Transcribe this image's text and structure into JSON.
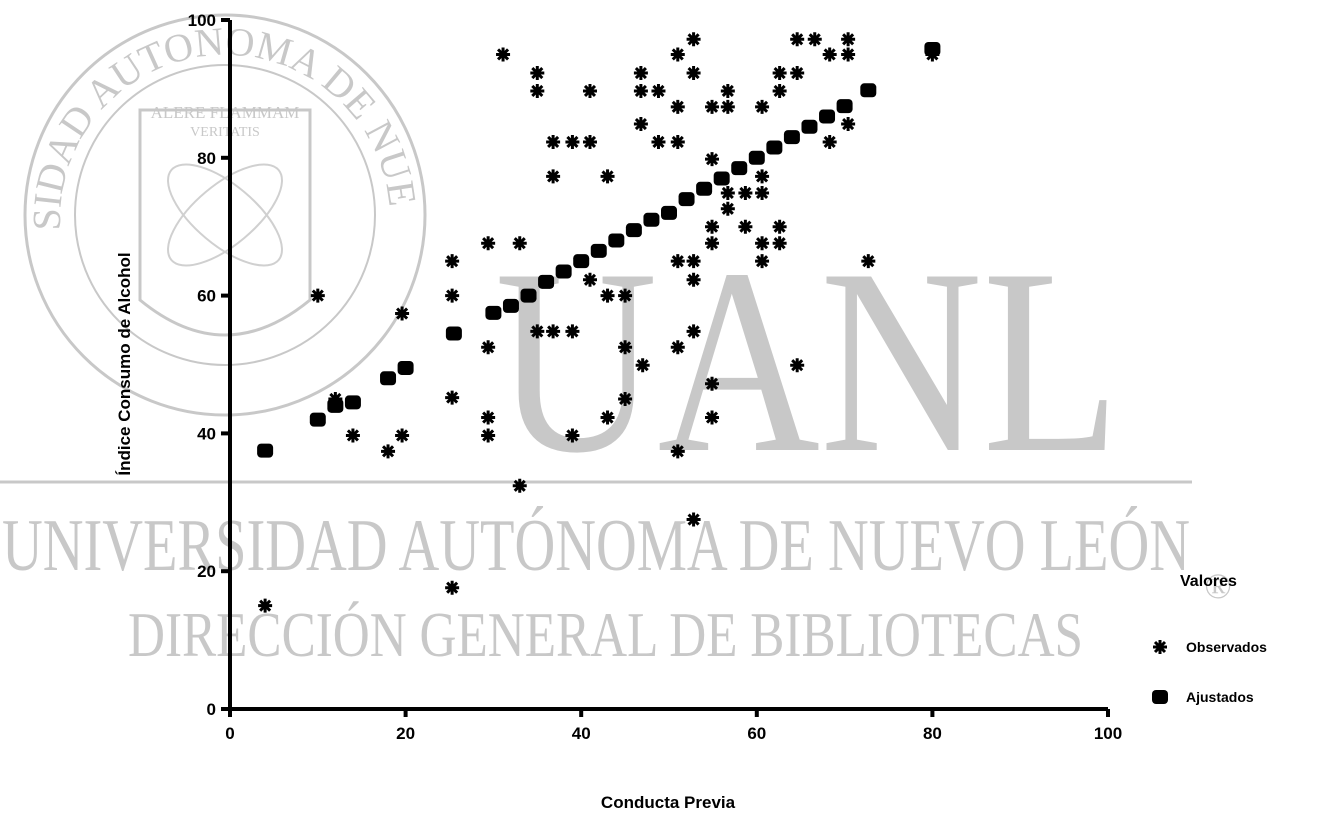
{
  "watermark": {
    "seal_text": "UNIVERSIDAD AUTONOMA DE NUEVO LEON",
    "motto_1": "ALERE FLAMMAM",
    "motto_2": "VERITATIS",
    "acronym": "UANL",
    "line_1": "UNIVERSIDAD AUTÓNOMA DE NUEVO LEÓN",
    "line_2": "DIRECCIÓN GENERAL DE BIBLIOTECAS",
    "mark": "®"
  },
  "chart_data": {
    "type": "scatter",
    "x_label": "Conducta Previa",
    "y_label": "Índice Consumo de Alcohol",
    "xlim": [
      0,
      100
    ],
    "ylim": [
      0,
      100
    ],
    "xticks": [
      0,
      20,
      40,
      60,
      80,
      100
    ],
    "yticks": [
      0,
      20,
      40,
      60,
      80,
      100
    ],
    "legend_title": "Valores",
    "legend": "right",
    "series": [
      {
        "name": "Observados",
        "color": "#000000",
        "marker": "asterisk",
        "x": [
          4,
          10,
          12,
          14,
          18,
          19.6,
          19.6,
          25.3,
          25.3,
          25.3,
          25.3,
          29.4,
          29.4,
          29.4,
          29.4,
          31.1,
          33,
          33,
          35,
          35,
          35,
          36.8,
          36.8,
          36.8,
          39,
          39,
          39,
          41,
          41,
          41,
          43,
          43,
          43,
          45,
          45,
          45,
          46.8,
          46.8,
          46.8,
          47,
          48.8,
          48.8,
          51,
          51,
          51,
          51,
          51,
          51,
          52.8,
          52.8,
          52.8,
          52.8,
          52.8,
          52.8,
          54.9,
          54.9,
          54.9,
          54.9,
          54.9,
          54.9,
          56.7,
          56.7,
          56.7,
          56.7,
          58.7,
          58.7,
          60.6,
          60.6,
          60.6,
          60.6,
          60.6,
          62.6,
          62.6,
          62.6,
          62.6,
          64.6,
          64.6,
          64.6,
          66.6,
          68.3,
          68.3,
          70.4,
          70.4,
          70.4,
          72.7,
          80
        ],
        "y": [
          15,
          60,
          45,
          39.7,
          37.4,
          39.7,
          57.4,
          65,
          60,
          45.2,
          17.6,
          67.6,
          52.5,
          42.3,
          39.7,
          95,
          67.6,
          32.4,
          92.3,
          89.7,
          54.8,
          54.8,
          82.3,
          77.3,
          82.3,
          54.8,
          39.7,
          89.7,
          82.3,
          62.3,
          77.3,
          60,
          42.3,
          60,
          52.5,
          45,
          92.3,
          89.7,
          84.9,
          49.9,
          89.7,
          82.3,
          95,
          87.4,
          82.3,
          65,
          52.5,
          37.4,
          97.2,
          92.3,
          65,
          62.3,
          54.8,
          27.5,
          87.4,
          79.8,
          70,
          67.6,
          47.2,
          42.3,
          89.7,
          87.4,
          74.9,
          72.6,
          70,
          74.9,
          87.4,
          77.3,
          74.9,
          67.6,
          65,
          92.3,
          89.7,
          70,
          67.6,
          97.2,
          92.3,
          49.9,
          97.2,
          95,
          82.3,
          97.2,
          95,
          84.9,
          65,
          95
        ]
      },
      {
        "name": "Ajustados",
        "color": "#000000",
        "marker": "square",
        "x": [
          4,
          10,
          12,
          14,
          18,
          20,
          25.5,
          30,
          32,
          34,
          36,
          38,
          40,
          42,
          44,
          46,
          48,
          50,
          52,
          54,
          56,
          58,
          60,
          62,
          64,
          66,
          68,
          70,
          72.7,
          80
        ],
        "y": [
          37.5,
          42,
          44,
          44.5,
          48,
          49.5,
          54.5,
          57.5,
          58.5,
          60,
          62,
          63.5,
          65,
          66.5,
          68,
          69.5,
          71,
          72,
          74,
          75.5,
          77,
          78.5,
          80,
          81.5,
          83,
          84.5,
          86,
          87.5,
          89.8,
          95.8
        ]
      }
    ]
  }
}
